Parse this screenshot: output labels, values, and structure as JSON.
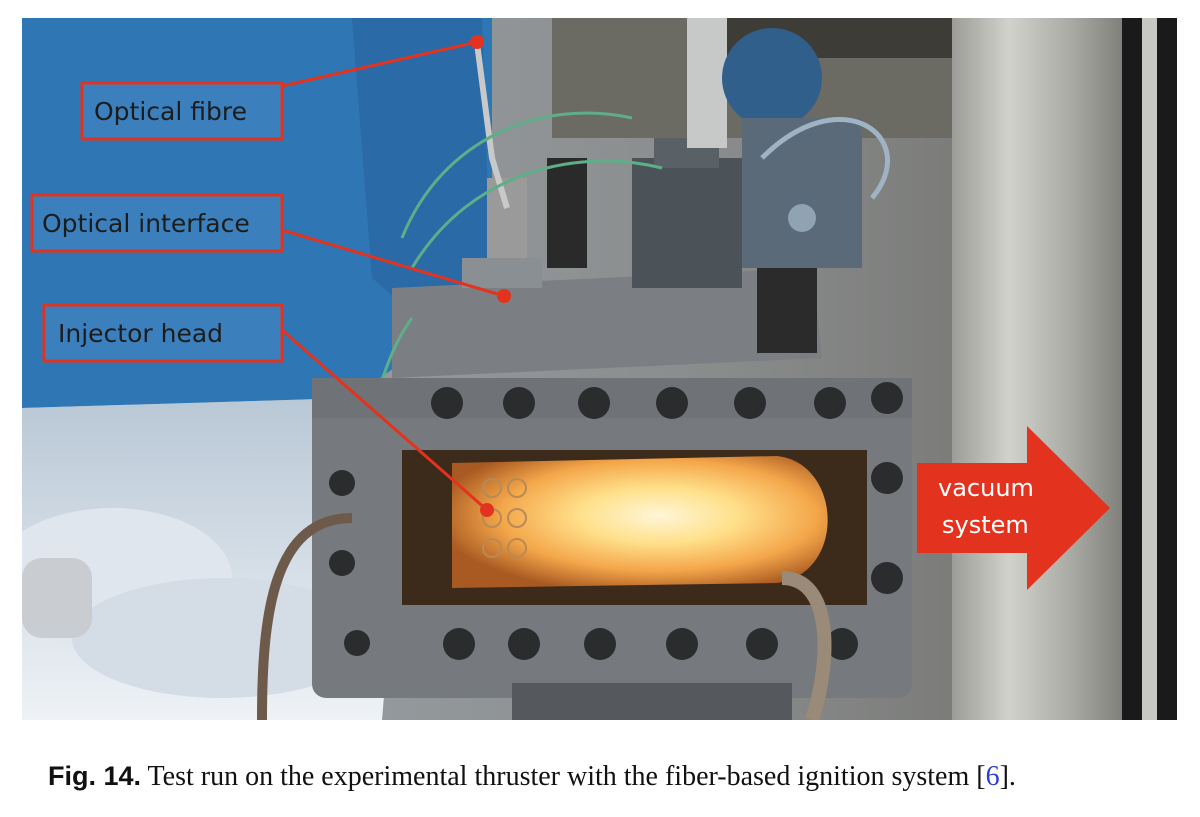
{
  "figure": {
    "labels": {
      "optical_fibre": "Optical fibre",
      "optical_interface": "Optical interface",
      "injector_head": "Injector head"
    },
    "arrow": {
      "line1": "vacuum",
      "line2": "system"
    },
    "colors": {
      "callout_red": "#e3331f",
      "wall_blue": "#2f76b5",
      "flame": "#ffd27a"
    }
  },
  "caption": {
    "label": "Fig. 14.",
    "text": " Test run on the experimental thruster with the fiber-based ignition system [",
    "ref": "6",
    "end": "]."
  }
}
